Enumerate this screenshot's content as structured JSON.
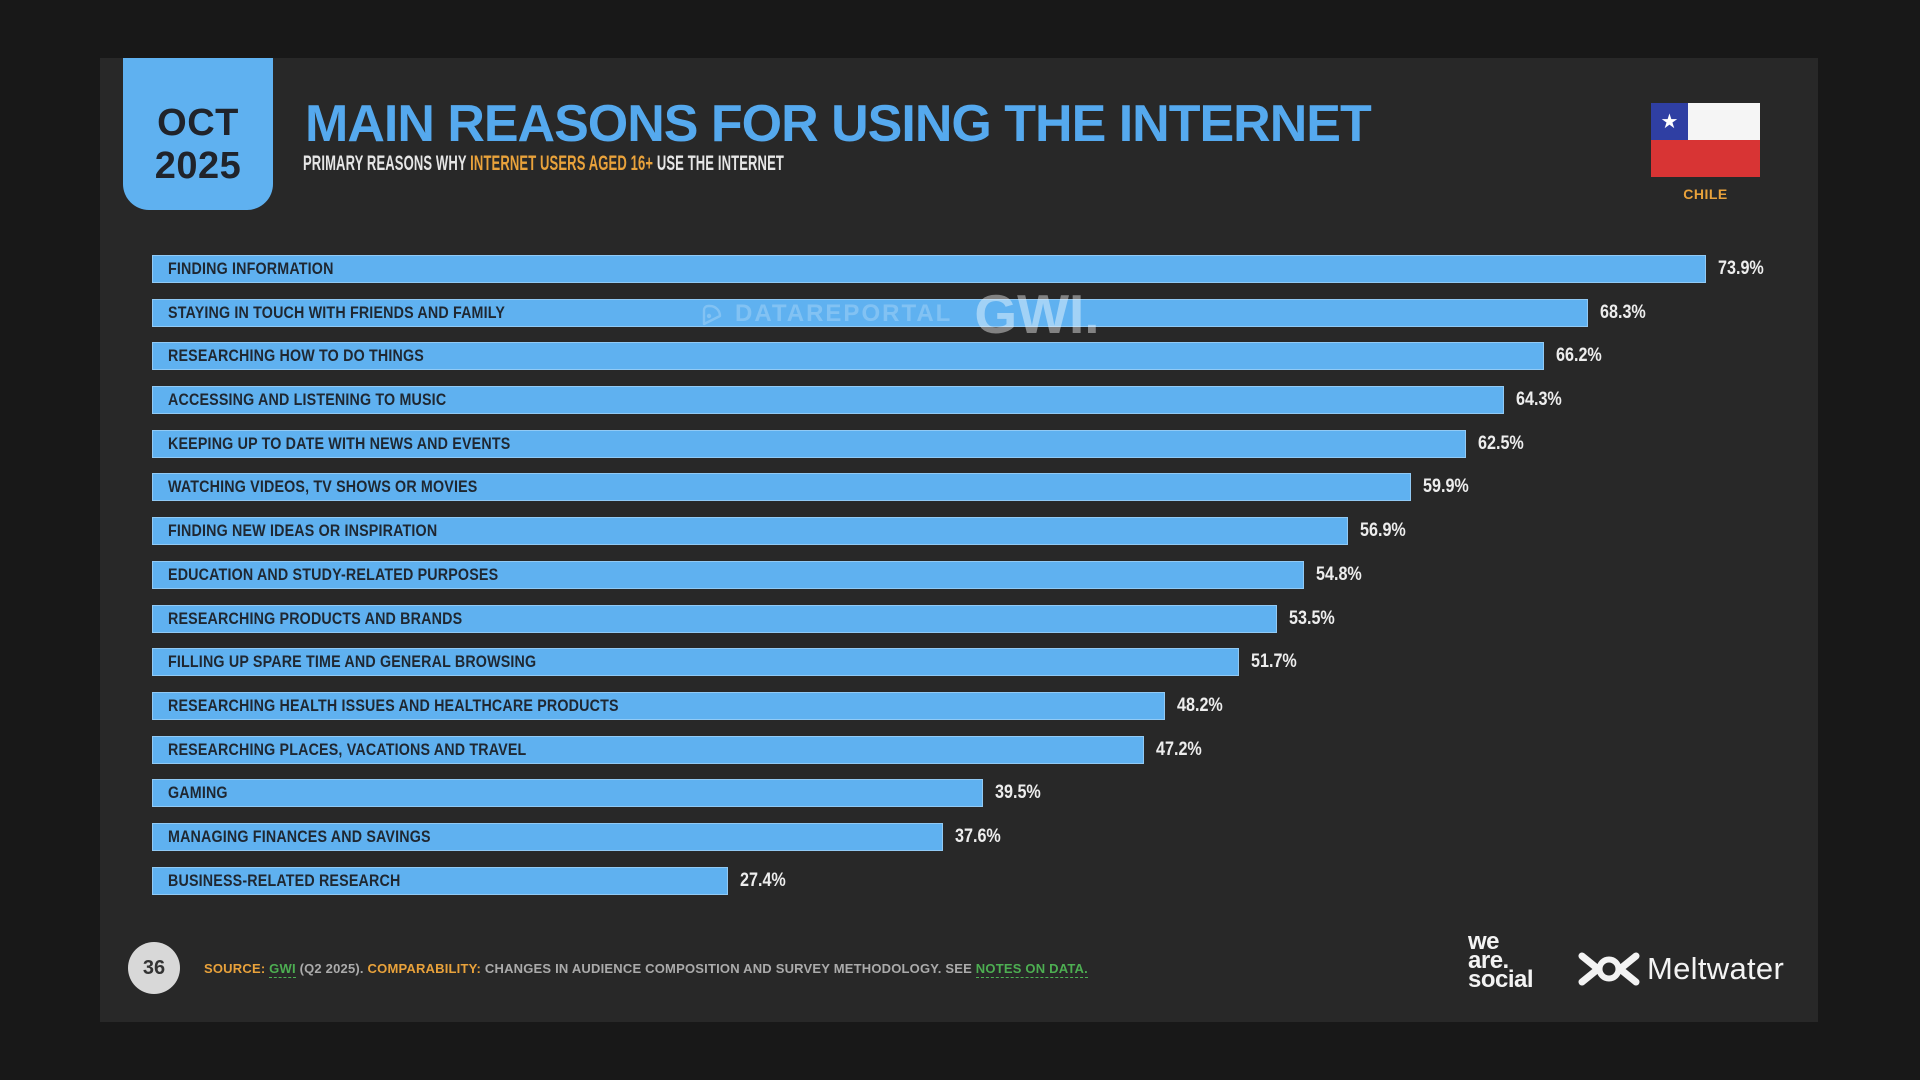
{
  "header": {
    "date_badge": {
      "month": "OCT",
      "year": "2025"
    },
    "title": "MAIN REASONS FOR USING THE INTERNET",
    "subtitle_prefix": "PRIMARY REASONS WHY ",
    "subtitle_highlight": "INTERNET USERS AGED 16+",
    "subtitle_suffix": " USE THE INTERNET",
    "country": "CHILE"
  },
  "watermark": {
    "datareportal": "DATAREPORTAL",
    "gwi": "GWI."
  },
  "chart_data": {
    "type": "bar",
    "orientation": "horizontal",
    "title": "MAIN REASONS FOR USING THE INTERNET",
    "categories": [
      "FINDING INFORMATION",
      "STAYING IN TOUCH WITH FRIENDS AND FAMILY",
      "RESEARCHING HOW TO DO THINGS",
      "ACCESSING AND LISTENING TO MUSIC",
      "KEEPING UP TO DATE WITH NEWS AND EVENTS",
      "WATCHING VIDEOS, TV SHOWS OR MOVIES",
      "FINDING NEW IDEAS OR INSPIRATION",
      "EDUCATION AND STUDY-RELATED PURPOSES",
      "RESEARCHING PRODUCTS AND BRANDS",
      "FILLING UP SPARE TIME AND GENERAL BROWSING",
      "RESEARCHING HEALTH ISSUES AND HEALTHCARE PRODUCTS",
      "RESEARCHING PLACES, VACATIONS AND TRAVEL",
      "GAMING",
      "MANAGING FINANCES AND SAVINGS",
      "BUSINESS-RELATED RESEARCH"
    ],
    "values": [
      73.9,
      68.3,
      66.2,
      64.3,
      62.5,
      59.9,
      56.9,
      54.8,
      53.5,
      51.7,
      48.2,
      47.2,
      39.5,
      37.6,
      27.4
    ],
    "value_suffix": "%",
    "xlim": [
      0,
      78
    ],
    "grid": false,
    "legend": false,
    "bar_color": "#5fb1f0",
    "label_position": "inside-left",
    "value_position": "outside-right"
  },
  "footer": {
    "page_number": "36",
    "source_label": "SOURCE:",
    "source_link": "GWI",
    "source_period": "(Q2 2025).",
    "comparability_label": "COMPARABILITY:",
    "comparability_text": "CHANGES IN AUDIENCE COMPOSITION AND SURVEY METHODOLOGY. SEE",
    "notes_link": "NOTES ON DATA.",
    "logos": {
      "we_are_social": [
        "we",
        "are.",
        "social"
      ],
      "meltwater": "Meltwater"
    }
  },
  "colors": {
    "canvas_bg": "#181818",
    "slide_bg": "#282828",
    "bar_blue": "#5fb1f0",
    "title_blue": "#55a9ee",
    "accent_orange": "#e9a23b",
    "link_green": "#4dae52",
    "dark_text": "#20242b",
    "value_text": "#ededed",
    "footer_gray": "#ababab",
    "flag_blue": "#2f3fa3",
    "flag_red": "#d83434"
  }
}
